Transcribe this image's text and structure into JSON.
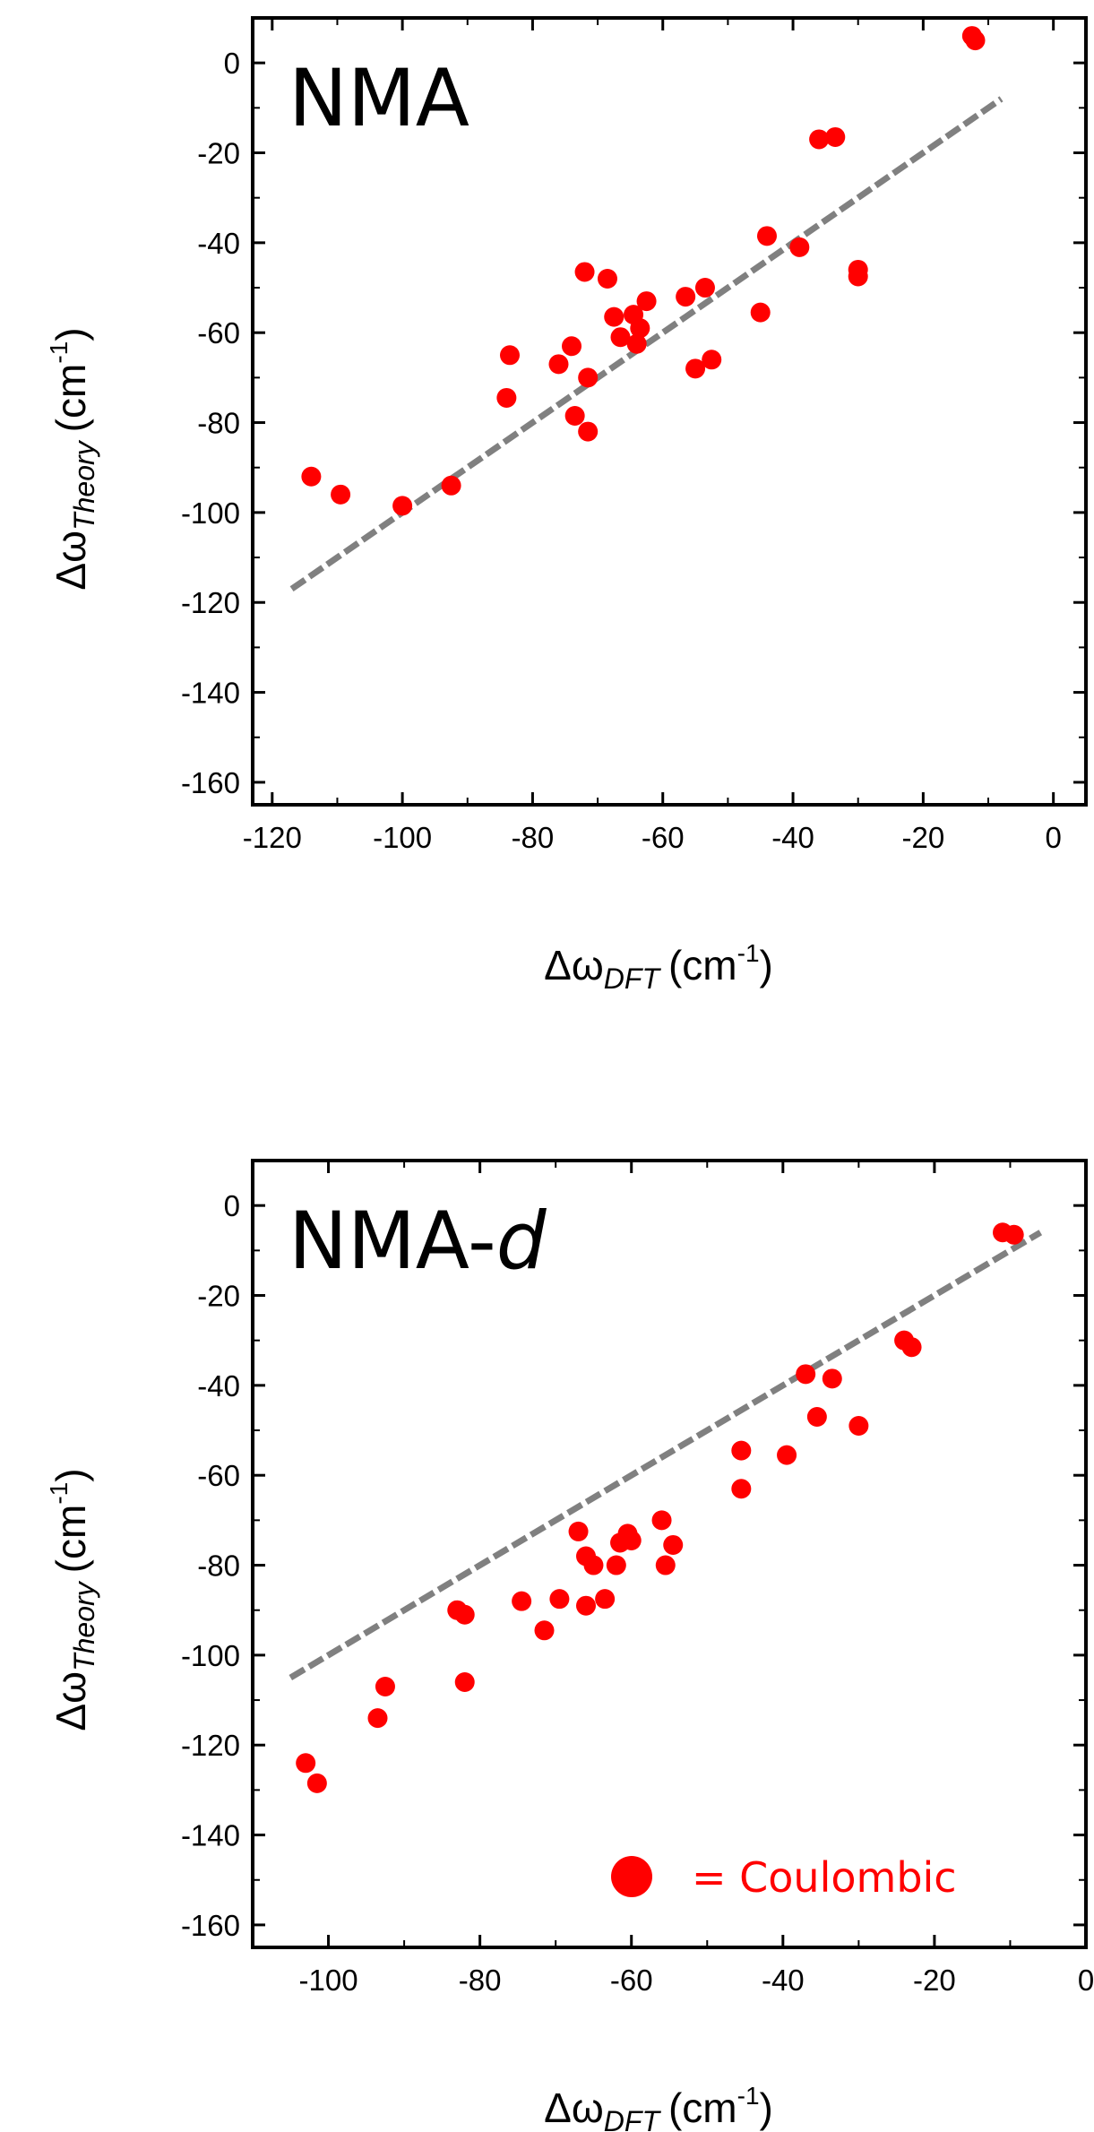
{
  "colors": {
    "points": "#ff0000",
    "fit_line": "#808080",
    "axes": "#000000"
  },
  "chart_data": [
    {
      "type": "scatter",
      "title": "NMA",
      "xlabel": {
        "prefix": "Δω",
        "sub": "DFT",
        "unit": "(cm",
        "sup": "-1",
        "close": ")"
      },
      "ylabel": {
        "prefix": "Δω",
        "sub": "Theory",
        "unit": "(cm",
        "sup": "-1",
        "close": ")"
      },
      "xlim": [
        -123,
        5
      ],
      "ylim": [
        -165,
        10
      ],
      "xticks": [
        -120,
        -100,
        -80,
        -60,
        -40,
        -20,
        0
      ],
      "yticks": [
        0,
        -20,
        -40,
        -60,
        -80,
        -100,
        -120,
        -140,
        -160
      ],
      "grid": false,
      "fit_line": {
        "x": [
          -117,
          -8
        ],
        "y": [
          -117,
          -8
        ]
      },
      "series": [
        {
          "points": [
            [
              -114,
              -92
            ],
            [
              -109.5,
              -96
            ],
            [
              -100,
              -98.5
            ],
            [
              -92.5,
              -94
            ],
            [
              -84,
              -74.5
            ],
            [
              -83.5,
              -65
            ],
            [
              -76,
              -67
            ],
            [
              -74,
              -63
            ],
            [
              -73.5,
              -78.5
            ],
            [
              -72,
              -46.5
            ],
            [
              -71.5,
              -82
            ],
            [
              -71.5,
              -70
            ],
            [
              -68.5,
              -48
            ],
            [
              -67.5,
              -56.5
            ],
            [
              -66.5,
              -61
            ],
            [
              -64.5,
              -56
            ],
            [
              -64,
              -62.5
            ],
            [
              -63.5,
              -59
            ],
            [
              -62.5,
              -53
            ],
            [
              -56.5,
              -52
            ],
            [
              -55,
              -68
            ],
            [
              -53.5,
              -50
            ],
            [
              -52.5,
              -66
            ],
            [
              -45,
              -55.5
            ],
            [
              -44,
              -38.5
            ],
            [
              -39,
              -41
            ],
            [
              -36,
              -17
            ],
            [
              -33.5,
              -16.5
            ],
            [
              -30,
              -46
            ],
            [
              -30,
              -47.5
            ],
            [
              -12.5,
              6
            ],
            [
              -12,
              5
            ]
          ]
        }
      ]
    },
    {
      "type": "scatter",
      "title_main": "NMA-",
      "title_italic": "d",
      "xlabel": {
        "prefix": "Δω",
        "sub": "DFT",
        "unit": "(cm",
        "sup": "-1",
        "close": ")"
      },
      "ylabel": {
        "prefix": "Δω",
        "sub": "Theory",
        "unit": "(cm",
        "sup": "-1",
        "close": ")"
      },
      "xlim": [
        -110,
        0
      ],
      "ylim": [
        -165,
        10
      ],
      "xticks": [
        -100,
        -80,
        -60,
        -40,
        -20,
        0
      ],
      "yticks": [
        0,
        -20,
        -40,
        -60,
        -80,
        -100,
        -120,
        -140,
        -160
      ],
      "grid": false,
      "legend": {
        "label": "= Coulombic",
        "position": "bottom-right"
      },
      "fit_line": {
        "x": [
          -105,
          -6
        ],
        "y": [
          -105,
          -6
        ]
      },
      "series": [
        {
          "points": [
            [
              -103,
              -124
            ],
            [
              -101.5,
              -128.5
            ],
            [
              -93.5,
              -114
            ],
            [
              -92.5,
              -107
            ],
            [
              -83,
              -90
            ],
            [
              -82,
              -106
            ],
            [
              -82,
              -91
            ],
            [
              -74.5,
              -88
            ],
            [
              -71.5,
              -94.5
            ],
            [
              -69.5,
              -87.5
            ],
            [
              -67,
              -72.5
            ],
            [
              -66,
              -89
            ],
            [
              -66,
              -78
            ],
            [
              -65,
              -80
            ],
            [
              -63.5,
              -87.5
            ],
            [
              -62,
              -80
            ],
            [
              -61.5,
              -75
            ],
            [
              -60.5,
              -73
            ],
            [
              -60,
              -74.5
            ],
            [
              -56,
              -70
            ],
            [
              -55.5,
              -80
            ],
            [
              -54.5,
              -75.5
            ],
            [
              -45.5,
              -54.5
            ],
            [
              -45.5,
              -63
            ],
            [
              -39.5,
              -55.5
            ],
            [
              -37,
              -37.5
            ],
            [
              -35.5,
              -47
            ],
            [
              -33.5,
              -38.5
            ],
            [
              -30,
              -49
            ],
            [
              -24,
              -30
            ],
            [
              -23,
              -31.5
            ],
            [
              -11,
              -6
            ],
            [
              -9.5,
              -6.5
            ]
          ]
        }
      ]
    }
  ]
}
